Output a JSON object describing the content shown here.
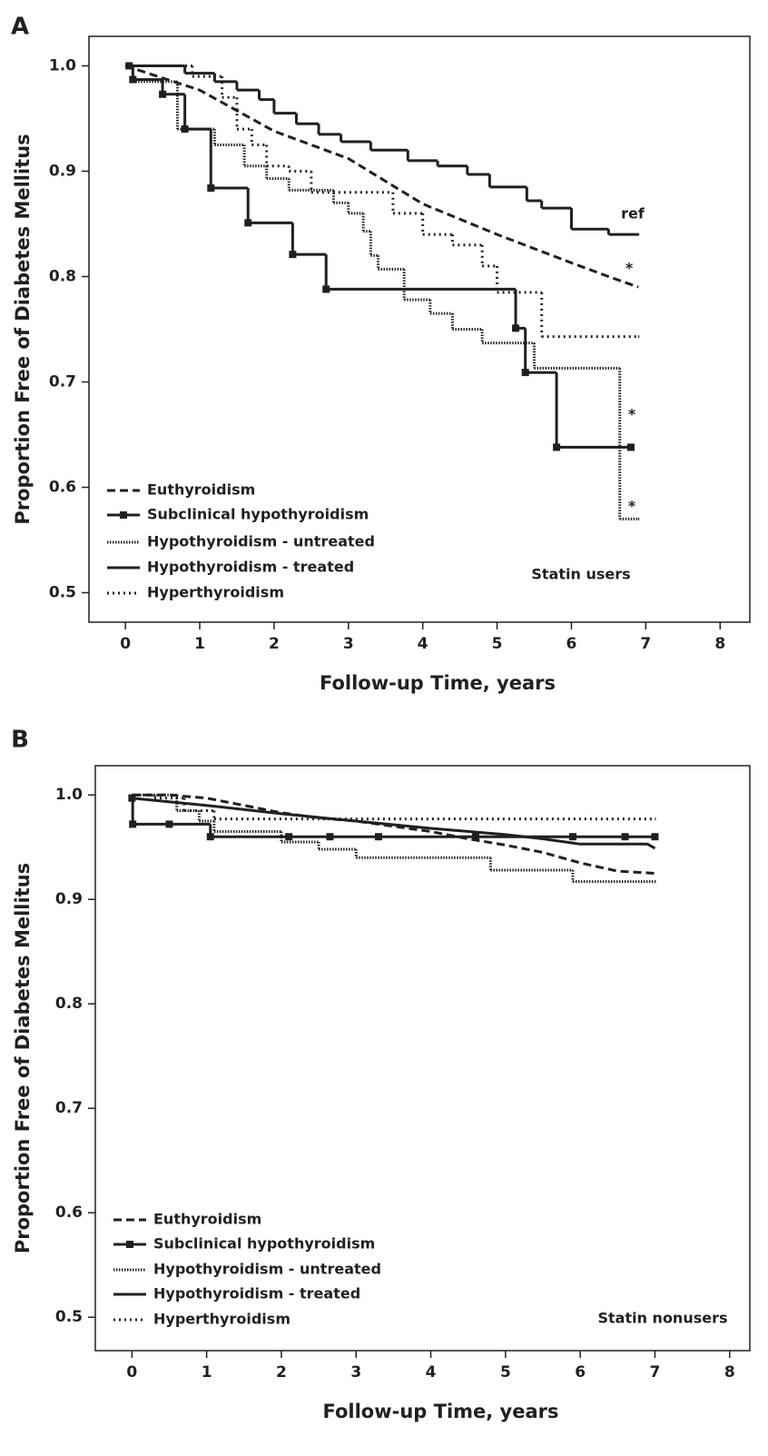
{
  "chart_data": [
    {
      "type": "line",
      "panel": "A",
      "xlabel": "Follow-up Time, years",
      "ylabel": "Proportion Free of Diabetes Mellitus",
      "xlim": [
        -0.49,
        8.4
      ],
      "ylim": [
        0.472,
        1.028
      ],
      "xticks": [
        0,
        1,
        2,
        3,
        4,
        5,
        6,
        7,
        8
      ],
      "yticks": [
        0.5,
        0.6,
        0.7,
        0.8,
        0.9,
        {
          "value": 1,
          "label": "1.0"
        }
      ],
      "legend": "lower left",
      "grid": false,
      "annotations": [
        "ref",
        "*",
        "*",
        "*",
        "Statin users"
      ],
      "series": [
        {
          "name": "Euthyroidism",
          "color": "#231f20",
          "style": "dashed",
          "step": false,
          "x": [
            0,
            1,
            2,
            3,
            4,
            5,
            6,
            6.5,
            6.9
          ],
          "values": [
            1.0,
            0.977,
            0.938,
            0.912,
            0.869,
            0.84,
            0.813,
            0.8,
            0.79
          ]
        },
        {
          "name": "Subclinical hypothyroidism",
          "color": "#231f20",
          "style": "solid",
          "step": true,
          "marker": "square",
          "x": [
            0.05,
            0.1,
            0.5,
            0.8,
            1.15,
            1.65,
            2.25,
            2.7,
            5.25,
            5.38,
            5.8,
            6.8
          ],
          "values": [
            1.0,
            0.987,
            0.973,
            0.94,
            0.884,
            0.851,
            0.821,
            0.788,
            0.751,
            0.709,
            0.638,
            0.638
          ]
        },
        {
          "name": "Hypothyroidism - untreated",
          "color": "#231f20",
          "style": "dense-dotted",
          "step": true,
          "x": [
            0,
            0.1,
            0.7,
            1.2,
            1.6,
            1.9,
            2.2,
            2.8,
            3.0,
            3.2,
            3.3,
            3.4,
            3.75,
            4.1,
            4.4,
            4.8,
            5.5,
            6.65,
            6.9
          ],
          "values": [
            1.0,
            0.985,
            0.94,
            0.925,
            0.905,
            0.893,
            0.882,
            0.87,
            0.86,
            0.843,
            0.82,
            0.807,
            0.778,
            0.765,
            0.75,
            0.737,
            0.713,
            0.57,
            0.57
          ]
        },
        {
          "name": "Hypothyroidism - treated",
          "color": "#231f20",
          "style": "solid",
          "step": true,
          "x": [
            0,
            0.8,
            1.2,
            1.5,
            1.8,
            2.0,
            2.3,
            2.6,
            2.9,
            3.3,
            3.8,
            4.2,
            4.6,
            4.9,
            5.4,
            5.6,
            6.0,
            6.5,
            6.9
          ],
          "values": [
            1.0,
            0.993,
            0.985,
            0.977,
            0.968,
            0.955,
            0.945,
            0.935,
            0.928,
            0.92,
            0.91,
            0.905,
            0.897,
            0.885,
            0.872,
            0.865,
            0.845,
            0.84,
            0.84
          ]
        },
        {
          "name": "Hyperthyroidism",
          "color": "#231f20",
          "style": "dotted",
          "step": true,
          "x": [
            0,
            0.9,
            1.3,
            1.5,
            1.7,
            1.9,
            2.2,
            2.5,
            3.6,
            4.0,
            4.4,
            4.8,
            5.0,
            5.6,
            6.9
          ],
          "values": [
            1.0,
            0.99,
            0.97,
            0.94,
            0.925,
            0.905,
            0.9,
            0.88,
            0.86,
            0.84,
            0.83,
            0.81,
            0.785,
            0.743,
            0.743
          ]
        }
      ]
    },
    {
      "type": "line",
      "panel": "B",
      "xlabel": "Follow-up Time, years",
      "ylabel": "Proportion Free of Diabetes Mellitus",
      "xlim": [
        -0.49,
        8.27
      ],
      "ylim": [
        0.468,
        1.028
      ],
      "xticks": [
        0,
        1,
        2,
        3,
        4,
        5,
        6,
        7,
        8
      ],
      "yticks": [
        0.5,
        0.6,
        0.7,
        0.8,
        0.9,
        {
          "value": 1,
          "label": "1.0"
        }
      ],
      "legend": "lower left",
      "grid": false,
      "annotations": [
        "Statin nonusers"
      ],
      "series": [
        {
          "name": "Euthyroidism",
          "color": "#231f20",
          "style": "dashed",
          "step": false,
          "x": [
            0,
            0.5,
            1,
            1.5,
            2,
            2.5,
            3,
            3.5,
            4,
            4.5,
            5,
            5.5,
            6,
            6.5,
            7
          ],
          "values": [
            1.0,
            1.0,
            0.997,
            0.99,
            0.983,
            0.978,
            0.975,
            0.97,
            0.965,
            0.958,
            0.952,
            0.945,
            0.935,
            0.927,
            0.925
          ]
        },
        {
          "name": "Subclinical hypothyroidism",
          "color": "#231f20",
          "style": "solid",
          "step": true,
          "marker": "square",
          "x": [
            0,
            0.01,
            0.5,
            1.05,
            2.1,
            2.65,
            3.3,
            4.6,
            5.9,
            6.6,
            7.0
          ],
          "values": [
            0.997,
            0.972,
            0.972,
            0.96,
            0.96,
            0.96,
            0.96,
            0.96,
            0.96,
            0.96,
            0.96
          ]
        },
        {
          "name": "Hypothyroidism - untreated",
          "color": "#231f20",
          "style": "dense-dotted",
          "step": true,
          "x": [
            0,
            0.6,
            0.9,
            1.1,
            2.0,
            2.5,
            3.0,
            4.8,
            5.9,
            7.0
          ],
          "values": [
            1.0,
            0.985,
            0.975,
            0.965,
            0.955,
            0.948,
            0.94,
            0.928,
            0.917,
            0.917
          ]
        },
        {
          "name": "Hypothyroidism - treated",
          "color": "#231f20",
          "style": "solid",
          "step": false,
          "x": [
            0,
            1,
            2,
            3,
            4,
            5,
            5.5,
            6,
            6.9,
            7
          ],
          "values": [
            0.997,
            0.99,
            0.982,
            0.975,
            0.968,
            0.962,
            0.958,
            0.953,
            0.953,
            0.949
          ]
        },
        {
          "name": "Hyperthyroidism",
          "color": "#231f20",
          "style": "dotted",
          "step": true,
          "x": [
            0,
            0.3,
            0.7,
            1.1,
            7.0
          ],
          "values": [
            1.0,
            0.997,
            0.985,
            0.977,
            0.977
          ]
        }
      ]
    }
  ]
}
